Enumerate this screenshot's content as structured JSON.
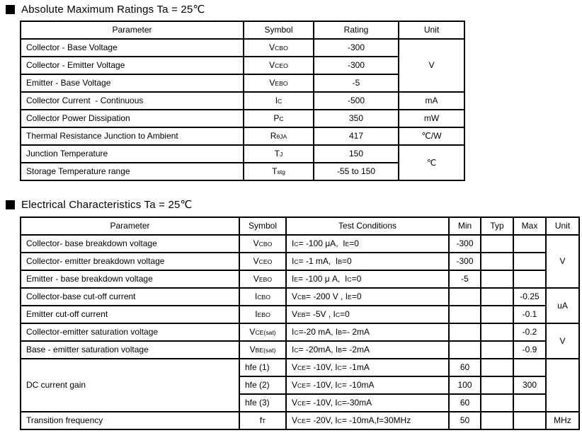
{
  "sections": {
    "abs": {
      "title": "Absolute Maximum Ratings Ta = 25℃",
      "headers": [
        "Parameter",
        "Symbol",
        "Rating",
        "Unit"
      ],
      "rows": [
        {
          "param": "Collector - Base Voltage",
          "symbol": "V_CBO_",
          "rating": "-300",
          "unit": "V"
        },
        {
          "param": "Collector - Emitter Voltage",
          "symbol": "V_CEO_",
          "rating": "-300"
        },
        {
          "param": "Emitter - Base Voltage",
          "symbol": "V_EBO_",
          "rating": "-5"
        },
        {
          "param": "Collector Current  - Continuous",
          "symbol": "I_C_",
          "rating": "-500",
          "unit": "mA"
        },
        {
          "param": "Collector Power Dissipation",
          "symbol": "P_C_",
          "rating": "350",
          "unit": "mW"
        },
        {
          "param": "Thermal Resistance Junction to Ambient",
          "symbol": "R_θJA_",
          "rating": "417",
          "unit": "℃/W"
        },
        {
          "param": "Junction Temperature",
          "symbol": "T_J_",
          "rating": "150",
          "unit": "℃"
        },
        {
          "param": "Storage Temperature range",
          "symbol": "T_stg_",
          "rating": "-55 to 150"
        }
      ]
    },
    "elec": {
      "title": "Electrical Characteristics Ta = 25℃",
      "headers": [
        "Parameter",
        "Symbol",
        "Test Conditions",
        "Min",
        "Typ",
        "Max",
        "Unit"
      ],
      "rows": [
        {
          "param": "Collector- base breakdown voltage",
          "symbol": "V_CBO_",
          "cond": "I_C_= -100 μA,  I_E_=0",
          "min": "-300",
          "unit": "V"
        },
        {
          "param": "Collector- emitter breakdown voltage",
          "symbol": "V_CEO_",
          "cond": "I_C_= -1 mA,  I_B_=0",
          "min": "-300"
        },
        {
          "param": "Emitter - base breakdown voltage",
          "symbol": "V_EBO_",
          "cond": "I_E_= -100 μ A,  I_C_=0",
          "min": "-5"
        },
        {
          "param": "Collector-base cut-off current",
          "symbol": "I_CBO_",
          "cond": "V_CB_= -200 V , I_E_=0",
          "max": "-0.25",
          "unit": "uA"
        },
        {
          "param": "Emitter cut-off current",
          "symbol": "I_EBO_",
          "cond": "V_EB_= -5V , I_C_=0",
          "max": "-0.1"
        },
        {
          "param": "Collector-emitter saturation voltage",
          "symbol": "V_CE(sat)_",
          "cond": "I_C_=-20 mA, I_B_=- 2mA",
          "max": "-0.2",
          "unit": "V"
        },
        {
          "param": "Base - emitter saturation voltage",
          "symbol": "V_BE(sat)_",
          "cond": "I_C_= -20mA, I_B_= -2mA",
          "max": "-0.9"
        },
        {
          "param": "DC current gain",
          "symbol": "hfe (1)",
          "cond": "V_CE_= -10V, I_C_= -1mA",
          "min": "60",
          "unit": ""
        },
        {
          "symbol": "hfe (2)",
          "cond": "V_CE_= -10V, I_C_= -10mA",
          "min": "100",
          "max": "300"
        },
        {
          "symbol": "hfe (3)",
          "cond": "V_CE_= -10V, I_C_=-30mA",
          "min": "60"
        },
        {
          "param": "Transition frequency",
          "symbol": "f_T_",
          "cond": "V_CE_= -20V, I_C_= -10mA,f=30MHz",
          "min": "50",
          "unit": "MHz"
        }
      ]
    }
  }
}
